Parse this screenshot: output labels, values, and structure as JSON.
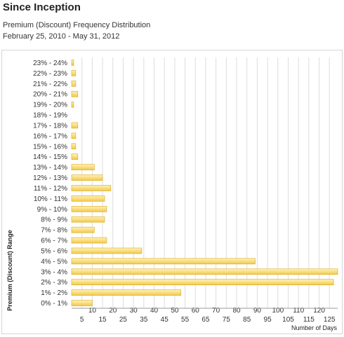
{
  "header": {
    "title": "Since Inception",
    "subtitle": "Premium (Discount) Frequency Distribution",
    "date_range": "February 25, 2010 - May 31, 2012"
  },
  "colors": {
    "bar_fill_top": "#fff2b8",
    "bar_fill_bottom": "#f2c94a",
    "bar_stroke": "#d9a920",
    "grid": "#dddddd",
    "axis": "#999999"
  },
  "chart_data": {
    "type": "bar",
    "orientation": "horizontal",
    "title": "",
    "xlabel": "Number of Days",
    "ylabel": "Premium (Discount) Range",
    "xlim": [
      0,
      129
    ],
    "grid": true,
    "x_tick_values": [
      5,
      10,
      15,
      20,
      25,
      30,
      35,
      40,
      45,
      50,
      55,
      60,
      65,
      70,
      75,
      80,
      85,
      90,
      95,
      100,
      105,
      110,
      115,
      120,
      125
    ],
    "x_tick_labels": [
      "5",
      "10",
      "15",
      "20",
      "25",
      "30",
      "35",
      "40",
      "45",
      "50",
      "55",
      "60",
      "65",
      "70",
      "75",
      "80",
      "85",
      "90",
      "95",
      "100",
      "105",
      "110",
      "115",
      "120",
      "125"
    ],
    "categories": [
      "23% - 24%",
      "22% - 23%",
      "21% - 22%",
      "20% - 21%",
      "19% - 20%",
      "18% - 19%",
      "17% - 18%",
      "16% - 17%",
      "15% - 16%",
      "14% - 15%",
      "13% - 14%",
      "12% - 13%",
      "11% - 12%",
      "10% - 11%",
      "9% - 10%",
      "8% - 9%",
      "7% - 8%",
      "6% - 7%",
      "5% - 6%",
      "4% - 5%",
      "3% - 4%",
      "2% - 3%",
      "1% - 2%",
      "0% - 1%"
    ],
    "values": [
      1,
      2,
      2,
      3,
      1,
      0,
      3,
      2,
      2,
      3,
      11,
      15,
      19,
      16,
      17,
      16,
      11,
      17,
      34,
      89,
      129,
      127,
      53,
      10
    ]
  }
}
